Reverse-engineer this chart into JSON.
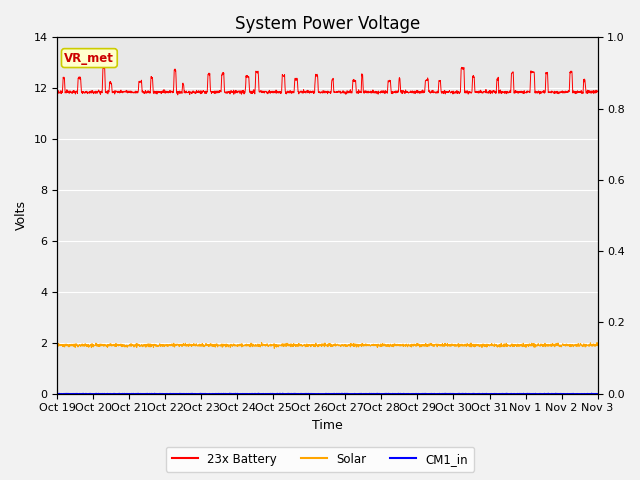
{
  "title": "System Power Voltage",
  "xlabel": "Time",
  "ylabel": "Volts",
  "ylim_left": [
    0,
    14
  ],
  "ylim_right": [
    0.0,
    1.0
  ],
  "yticks_left": [
    0,
    2,
    4,
    6,
    8,
    10,
    12,
    14
  ],
  "yticks_right": [
    0.0,
    0.2,
    0.4,
    0.6,
    0.8,
    1.0
  ],
  "x_tick_labels": [
    "Oct 19",
    "Oct 20",
    "Oct 21",
    "Oct 22",
    "Oct 23",
    "Oct 24",
    "Oct 25",
    "Oct 26",
    "Oct 27",
    "Oct 28",
    "Oct 29",
    "Oct 30",
    "Oct 31",
    "Nov 1",
    "Nov 2",
    "Nov 3"
  ],
  "n_days": 15,
  "figure_bg_color": "#f2f2f2",
  "plot_bg_color": "#e8e8e8",
  "grid_color": "#ffffff",
  "battery_color": "#ff0000",
  "solar_color": "#ffa500",
  "cm1_color": "#0000ff",
  "battery_base": 11.85,
  "solar_base": 1.9,
  "cm1_base": 0.0,
  "annotation_text": "VR_met",
  "annotation_bg": "#ffffcc",
  "annotation_border": "#cccc00",
  "legend_labels": [
    "23x Battery",
    "Solar",
    "CM1_in"
  ],
  "title_fontsize": 12,
  "axis_label_fontsize": 9,
  "tick_fontsize": 8
}
